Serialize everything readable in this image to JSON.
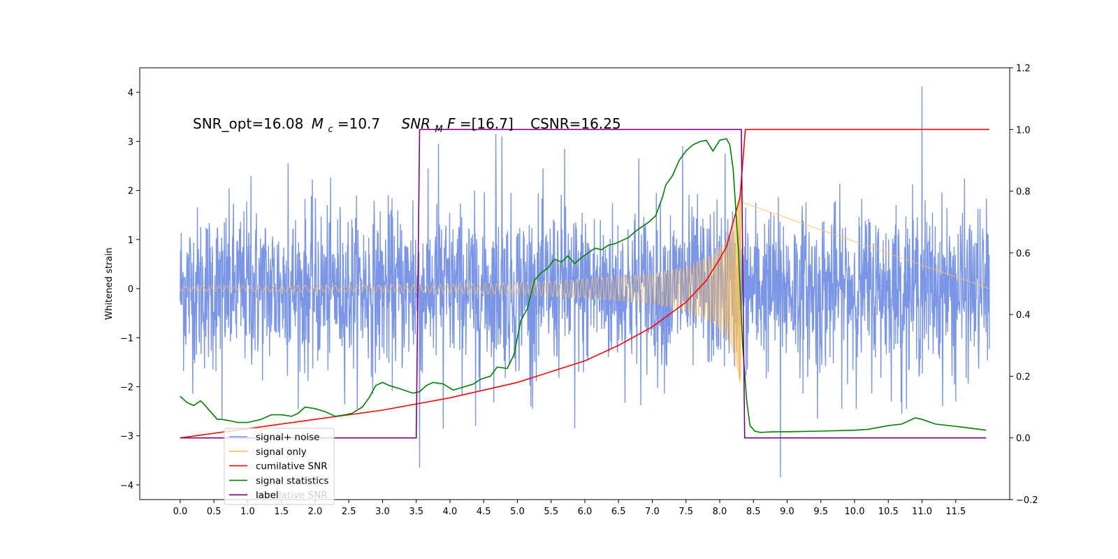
{
  "chart_data": {
    "type": "line",
    "title": "",
    "xlabel": "",
    "ylabel": "Whitened strain",
    "xlim": [
      -0.6,
      12.3
    ],
    "ylim": [
      -4.3,
      4.5
    ],
    "y2lim": [
      -0.2,
      1.2
    ],
    "x_ticks": [
      "0.0",
      "0.5",
      "1.0",
      "1.5",
      "2.0",
      "2.5",
      "3.0",
      "3.5",
      "4.0",
      "4.5",
      "5.0",
      "5.5",
      "6.0",
      "6.5",
      "7.0",
      "7.5",
      "8.0",
      "8.5",
      "9.0",
      "9.5",
      "10.0",
      "10.5",
      "11.0",
      "11.5"
    ],
    "y_ticks": [
      "4",
      "3",
      "2",
      "1",
      "0",
      "−1",
      "−2",
      "−3",
      "−4"
    ],
    "y2_ticks": [
      "1.2",
      "1.0",
      "0.8",
      "0.6",
      "0.4",
      "0.2",
      "0.0",
      "−0.2"
    ],
    "annotation": {
      "snr_opt": "SNR_opt=16.08",
      "mc_symbol": "M",
      "mc_sub": "c",
      "mc_value": "=10.7",
      "snr_mf_symbol": "SNR",
      "snr_mf_sub": "M",
      "snr_mf_tail": "F",
      "snr_mf_value": "=[16.7]",
      "csnr": "CSNR=16.25"
    },
    "legend": {
      "placement": "lower-left",
      "items": [
        {
          "label": "signal+ noise",
          "color": "#7b96e6"
        },
        {
          "label": "signal only",
          "color": "#ffbf5a"
        },
        {
          "label": "cumilative SNR",
          "color": "#ff0000"
        },
        {
          "label": "signal statistics",
          "color": "#008000"
        },
        {
          "label": "label",
          "color": "#800080"
        }
      ],
      "ghost_text": "cumilative SNR"
    },
    "series": [
      {
        "name": "signal+ noise",
        "axis": "left",
        "kind": "noise",
        "x_range": [
          0.0,
          12.0
        ],
        "envelope": 1.2,
        "peaks": [
          {
            "x": 0.62,
            "y": -2.65
          },
          {
            "x": 1.05,
            "y": 2.3
          },
          {
            "x": 1.6,
            "y": 2.55
          },
          {
            "x": 3.45,
            "y": 1.8
          },
          {
            "x": 3.55,
            "y": -3.65
          },
          {
            "x": 3.83,
            "y": 2.95
          },
          {
            "x": 3.9,
            "y": -2.85
          },
          {
            "x": 4.38,
            "y": -2.8
          },
          {
            "x": 4.68,
            "y": 3.15
          },
          {
            "x": 4.77,
            "y": 3.1
          },
          {
            "x": 5.2,
            "y": -2.4
          },
          {
            "x": 5.7,
            "y": 2.85
          },
          {
            "x": 5.85,
            "y": -2.85
          },
          {
            "x": 6.8,
            "y": 2.65
          },
          {
            "x": 7.45,
            "y": 2.9
          },
          {
            "x": 8.08,
            "y": 2.75
          },
          {
            "x": 8.9,
            "y": -3.85
          },
          {
            "x": 9.45,
            "y": -2.65
          },
          {
            "x": 10.7,
            "y": -2.55
          },
          {
            "x": 11.0,
            "y": 4.12
          },
          {
            "x": 11.5,
            "y": -2.3
          }
        ]
      },
      {
        "name": "signal only",
        "axis": "left",
        "kind": "chirp",
        "x_range": [
          0.0,
          8.32
        ],
        "amplitude": [
          [
            0.0,
            0.05
          ],
          [
            3.5,
            0.08
          ],
          [
            5.0,
            0.12
          ],
          [
            6.0,
            0.2
          ],
          [
            7.0,
            0.3
          ],
          [
            7.5,
            0.45
          ],
          [
            7.9,
            0.7
          ],
          [
            8.1,
            1.0
          ],
          [
            8.2,
            1.3
          ],
          [
            8.28,
            1.8
          ],
          [
            8.32,
            2.1
          ]
        ]
      },
      {
        "name": "cumilative SNR",
        "axis": "right",
        "x": [
          0.0,
          1.0,
          2.0,
          3.0,
          4.0,
          5.0,
          6.0,
          6.5,
          7.0,
          7.5,
          7.8,
          8.0,
          8.1,
          8.2,
          8.3,
          8.38,
          8.43,
          12.0
        ],
        "y": [
          0.0,
          0.03,
          0.06,
          0.09,
          0.13,
          0.18,
          0.25,
          0.3,
          0.36,
          0.44,
          0.51,
          0.58,
          0.62,
          0.7,
          0.78,
          1.0,
          1.0,
          1.0
        ]
      },
      {
        "name": "signal statistics",
        "axis": "right",
        "x": [
          0.0,
          0.1,
          0.2,
          0.3,
          0.35,
          0.45,
          0.55,
          0.62,
          0.75,
          0.85,
          1.0,
          1.2,
          1.35,
          1.5,
          1.65,
          1.75,
          1.85,
          2.0,
          2.15,
          2.3,
          2.45,
          2.55,
          2.7,
          2.8,
          2.9,
          3.0,
          3.1,
          3.25,
          3.45,
          3.55,
          3.65,
          3.75,
          3.9,
          4.05,
          4.2,
          4.35,
          4.45,
          4.6,
          4.7,
          4.85,
          4.95,
          5.05,
          5.15,
          5.25,
          5.35,
          5.45,
          5.55,
          5.65,
          5.75,
          5.85,
          5.95,
          6.05,
          6.15,
          6.25,
          6.35,
          6.45,
          6.55,
          6.65,
          6.75,
          6.85,
          6.95,
          7.05,
          7.15,
          7.2,
          7.3,
          7.4,
          7.5,
          7.6,
          7.7,
          7.8,
          7.9,
          8.0,
          8.1,
          8.15,
          8.2,
          8.28,
          8.34,
          8.4,
          8.45,
          8.52,
          8.6,
          8.8,
          9.0,
          9.5,
          10.0,
          10.2,
          10.5,
          10.7,
          10.9,
          11.0,
          11.2,
          11.6,
          11.95
        ],
        "y": [
          0.135,
          0.115,
          0.105,
          0.12,
          0.11,
          0.085,
          0.06,
          0.06,
          0.055,
          0.05,
          0.05,
          0.06,
          0.075,
          0.075,
          0.07,
          0.08,
          0.1,
          0.095,
          0.085,
          0.07,
          0.075,
          0.08,
          0.1,
          0.13,
          0.17,
          0.18,
          0.17,
          0.16,
          0.145,
          0.15,
          0.17,
          0.18,
          0.175,
          0.155,
          0.165,
          0.175,
          0.19,
          0.2,
          0.23,
          0.225,
          0.27,
          0.38,
          0.42,
          0.51,
          0.535,
          0.55,
          0.58,
          0.57,
          0.59,
          0.565,
          0.585,
          0.6,
          0.615,
          0.61,
          0.625,
          0.63,
          0.64,
          0.65,
          0.67,
          0.685,
          0.7,
          0.72,
          0.78,
          0.82,
          0.85,
          0.9,
          0.93,
          0.95,
          0.96,
          0.965,
          0.93,
          0.965,
          0.97,
          0.95,
          0.87,
          0.6,
          0.3,
          0.12,
          0.04,
          0.022,
          0.018,
          0.02,
          0.02,
          0.022,
          0.025,
          0.028,
          0.04,
          0.045,
          0.065,
          0.06,
          0.045,
          0.035,
          0.025
        ]
      },
      {
        "name": "label",
        "axis": "right",
        "x": [
          0.0,
          3.5,
          3.55,
          8.32,
          8.37,
          11.95
        ],
        "y": [
          0.0,
          0.0,
          1.0,
          1.0,
          0.0,
          0.0
        ]
      }
    ]
  }
}
